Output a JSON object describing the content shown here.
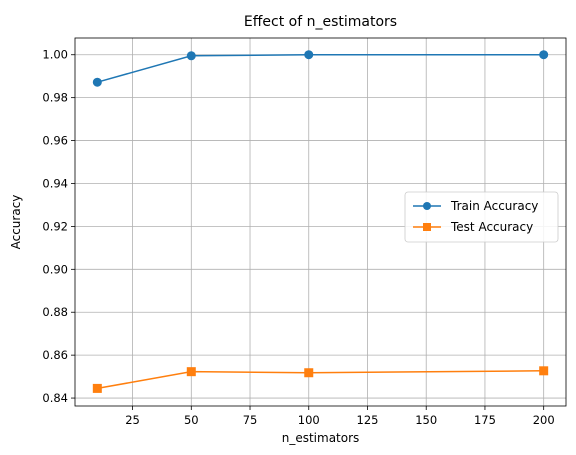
{
  "chart_data": {
    "type": "line",
    "title": "Effect of n_estimators",
    "xlabel": "n_estimators",
    "ylabel": "Accuracy",
    "x": [
      10,
      50,
      100,
      200
    ],
    "series": [
      {
        "name": "Train Accuracy",
        "values": [
          0.9872,
          0.9995,
          1.0,
          1.0
        ],
        "color": "#1f77b4",
        "marker": "circle"
      },
      {
        "name": "Test Accuracy",
        "values": [
          0.8445,
          0.8523,
          0.8518,
          0.8527
        ],
        "color": "#ff7f0e",
        "marker": "square"
      }
    ],
    "xlim": [
      0.5,
      209.5
    ],
    "ylim": [
      0.8363,
      1.0078
    ],
    "xticks": [
      25,
      50,
      75,
      100,
      125,
      150,
      175,
      200
    ],
    "yticks": [
      0.84,
      0.86,
      0.88,
      0.9,
      0.92,
      0.94,
      0.96,
      0.98,
      1.0
    ],
    "xtick_labels": [
      "25",
      "50",
      "75",
      "100",
      "125",
      "150",
      "175",
      "200"
    ],
    "ytick_labels": [
      "0.84",
      "0.86",
      "0.88",
      "0.90",
      "0.92",
      "0.94",
      "0.96",
      "0.98",
      "1.00"
    ],
    "grid": true,
    "legend_position": "center-right"
  }
}
